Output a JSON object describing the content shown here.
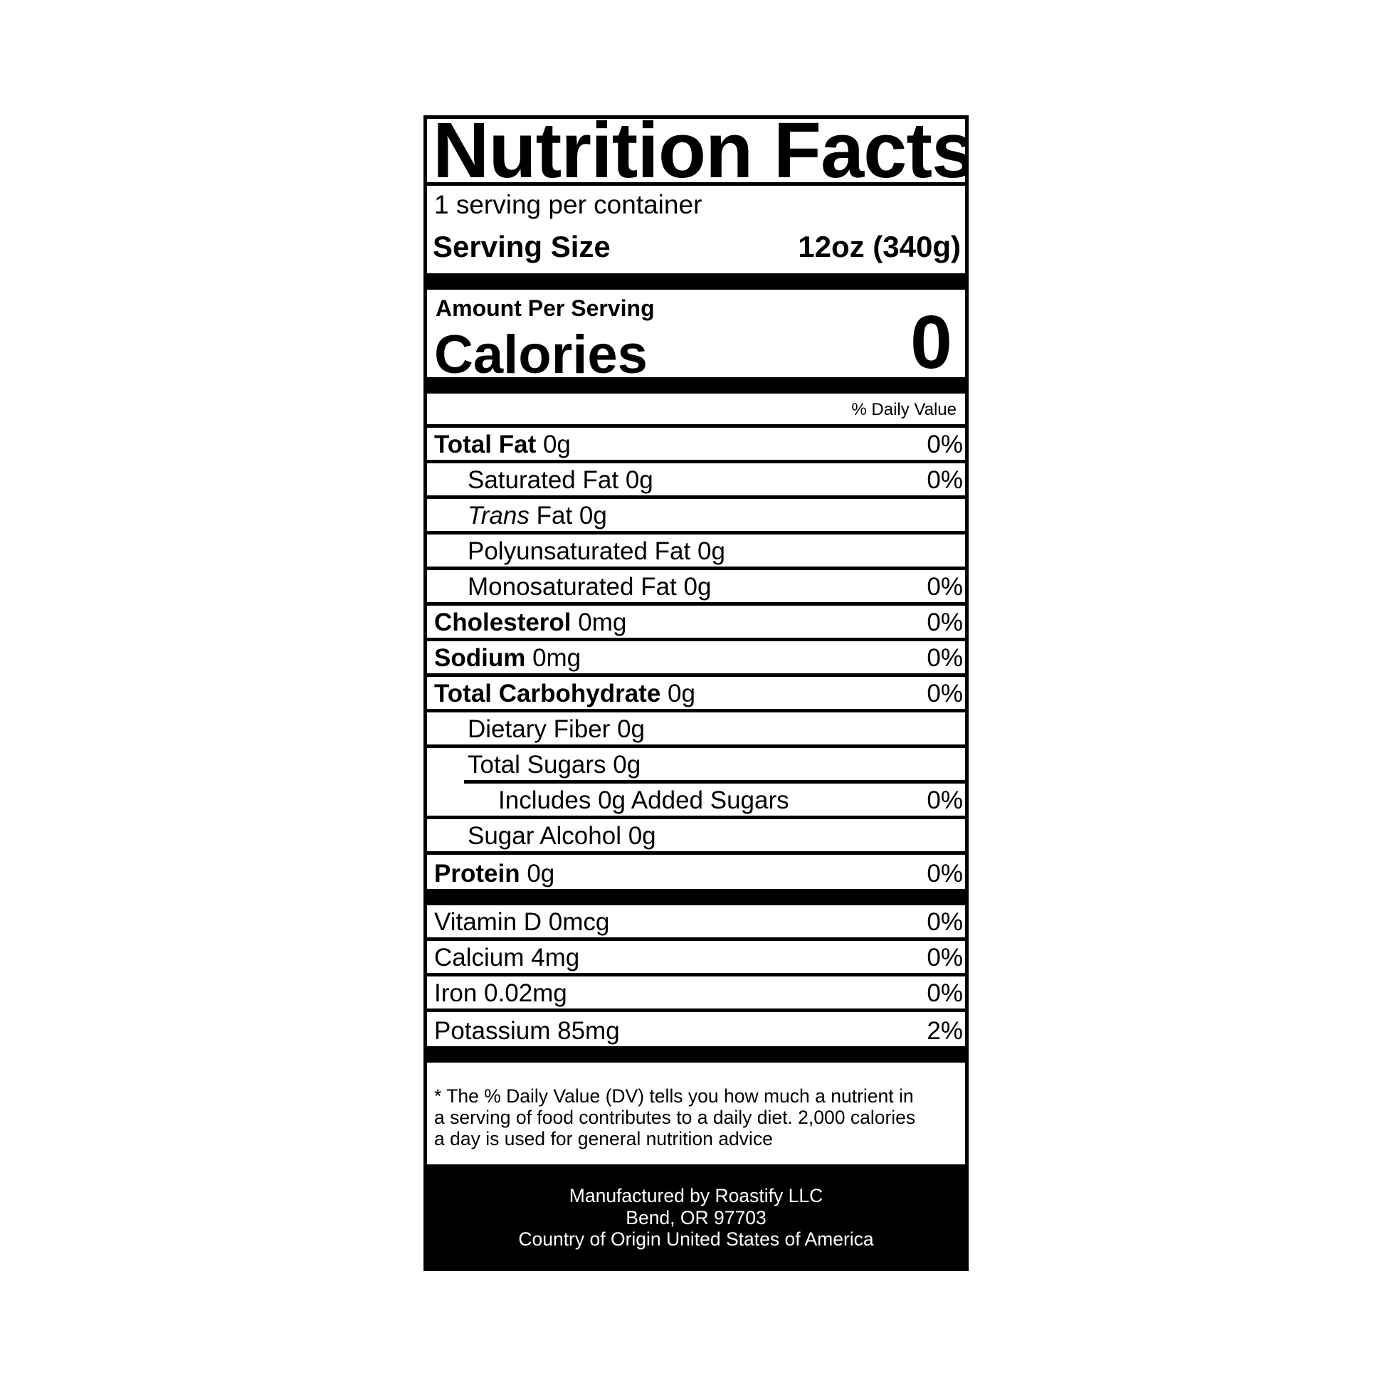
{
  "title": "Nutrition Facts",
  "servings_per_container": "1 serving per container",
  "serving_size_label": "Serving Size",
  "serving_size_value": "12oz (340g)",
  "amount_per_serving": "Amount Per Serving",
  "calories_label": "Calories",
  "calories_value": "0",
  "daily_value_header": "% Daily Value",
  "nutrients": [
    {
      "name": "Total Fat",
      "amount": "0g",
      "dv": "0%"
    },
    {
      "name": "Saturated Fat",
      "amount": "0g",
      "dv": "0%"
    },
    {
      "name_italic": "Trans",
      "name": "Fat",
      "amount": "0g",
      "dv": ""
    },
    {
      "name": "Polyunsaturated Fat",
      "amount": "0g",
      "dv": ""
    },
    {
      "name": "Monosaturated Fat",
      "amount": "0g",
      "dv": "0%"
    },
    {
      "name": "Cholesterol",
      "amount": "0mg",
      "dv": "0%"
    },
    {
      "name": "Sodium",
      "amount": "0mg",
      "dv": "0%"
    },
    {
      "name": "Total Carbohydrate",
      "amount": "0g",
      "dv": "0%"
    },
    {
      "name": "Dietary Fiber",
      "amount": "0g",
      "dv": ""
    },
    {
      "name": "Total Sugars",
      "amount": "0g",
      "dv": ""
    },
    {
      "text": "Includes 0g Added Sugars",
      "dv": "0%"
    },
    {
      "name": "Sugar Alcohol",
      "amount": "0g",
      "dv": ""
    },
    {
      "name": "Protein",
      "amount": "0g",
      "dv": "0%"
    }
  ],
  "vitamins": [
    {
      "text": "Vitamin D 0mcg",
      "dv": "0%"
    },
    {
      "text": "Calcium 4mg",
      "dv": "0%"
    },
    {
      "text": "Iron 0.02mg",
      "dv": "0%"
    },
    {
      "text": "Potassium 85mg",
      "dv": "2%"
    }
  ],
  "footnote": [
    "* The % Daily Value (DV) tells you how much a nutrient in",
    "a serving of food contributes to a daily diet. 2,000 calories",
    "a day is used for general nutrition advice"
  ],
  "manufacturer": [
    "Manufactured by Roastify LLC",
    "Bend, OR 97703",
    "Country of Origin United States of America"
  ]
}
